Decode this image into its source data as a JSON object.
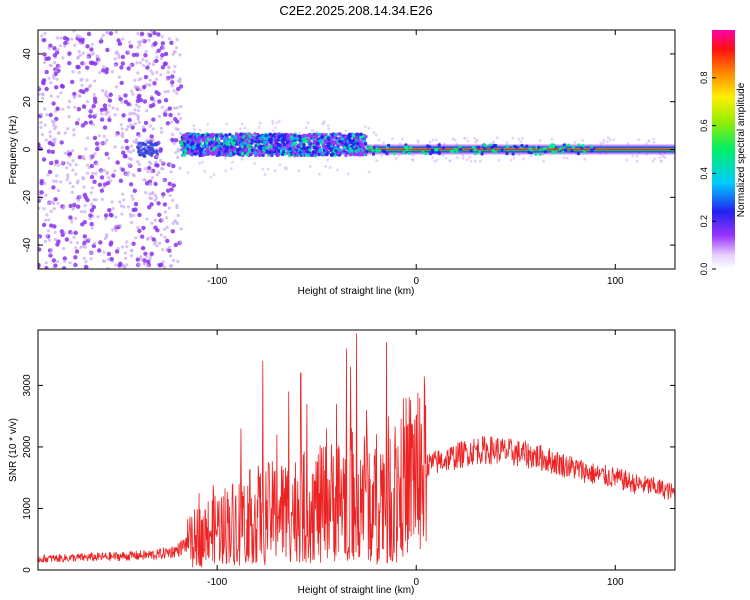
{
  "figure": {
    "title": "C2E2.2025.208.14.34.E26"
  },
  "chart_data": [
    {
      "type": "heatmap",
      "title": "C2E2.2025.208.14.34.E26",
      "xlabel": "Height of straight line (km)",
      "ylabel": "Frequency (Hz)",
      "xlim": [
        -190,
        130
      ],
      "ylim": [
        -50,
        50
      ],
      "x_ticks": [
        -100,
        0,
        100
      ],
      "y_ticks": [
        -40,
        -20,
        0,
        20,
        40
      ],
      "grid": false,
      "colorbar": {
        "label": "Normalized spectral amplitude",
        "range": [
          0,
          1
        ],
        "ticks": [
          0.0,
          0.2,
          0.4,
          0.6,
          0.8
        ]
      },
      "features": {
        "noise_region_x": [
          -190,
          -118
        ],
        "signal_band_center_hz": 0,
        "wide_band_x": [
          -118,
          -25
        ],
        "narrow_line_x": [
          -25,
          130
        ]
      }
    },
    {
      "type": "line",
      "xlabel": "Height of straight line (km)",
      "ylabel": "SNR (10 * v/v)",
      "xlim": [
        -190,
        130
      ],
      "ylim": [
        0,
        3900
      ],
      "x_ticks": [
        -100,
        0,
        100
      ],
      "y_ticks": [
        0,
        1000,
        2000,
        3000
      ],
      "color": "#ee2222",
      "x": [
        -190,
        -170,
        -150,
        -130,
        -120,
        -110,
        -100,
        -90,
        -80,
        -70,
        -60,
        -50,
        -40,
        -30,
        -20,
        -10,
        0,
        10,
        20,
        30,
        40,
        50,
        60,
        70,
        80,
        90,
        100,
        110,
        120,
        130
      ],
      "y": [
        180,
        200,
        220,
        250,
        320,
        550,
        700,
        800,
        900,
        950,
        1000,
        1050,
        1150,
        1250,
        1200,
        1400,
        1650,
        1750,
        1850,
        1950,
        1950,
        1900,
        1850,
        1750,
        1650,
        1550,
        1500,
        1400,
        1350,
        1250
      ],
      "spikes": [
        {
          "x": -109,
          "y": 1250
        },
        {
          "x": -102,
          "y": 1380
        },
        {
          "x": -88,
          "y": 2300
        },
        {
          "x": -77,
          "y": 3400
        },
        {
          "x": -70,
          "y": 2200
        },
        {
          "x": -64,
          "y": 2900
        },
        {
          "x": -58,
          "y": 3200
        },
        {
          "x": -55,
          "y": 2700
        },
        {
          "x": -45,
          "y": 2300
        },
        {
          "x": -40,
          "y": 2700
        },
        {
          "x": -35,
          "y": 3600
        },
        {
          "x": -33,
          "y": 3300
        },
        {
          "x": -30,
          "y": 3850
        },
        {
          "x": -25,
          "y": 2600
        },
        {
          "x": -15,
          "y": 3700
        },
        {
          "x": -8,
          "y": 1500
        },
        {
          "x": 0,
          "y": 2500
        },
        {
          "x": 3,
          "y": 900
        }
      ]
    }
  ]
}
